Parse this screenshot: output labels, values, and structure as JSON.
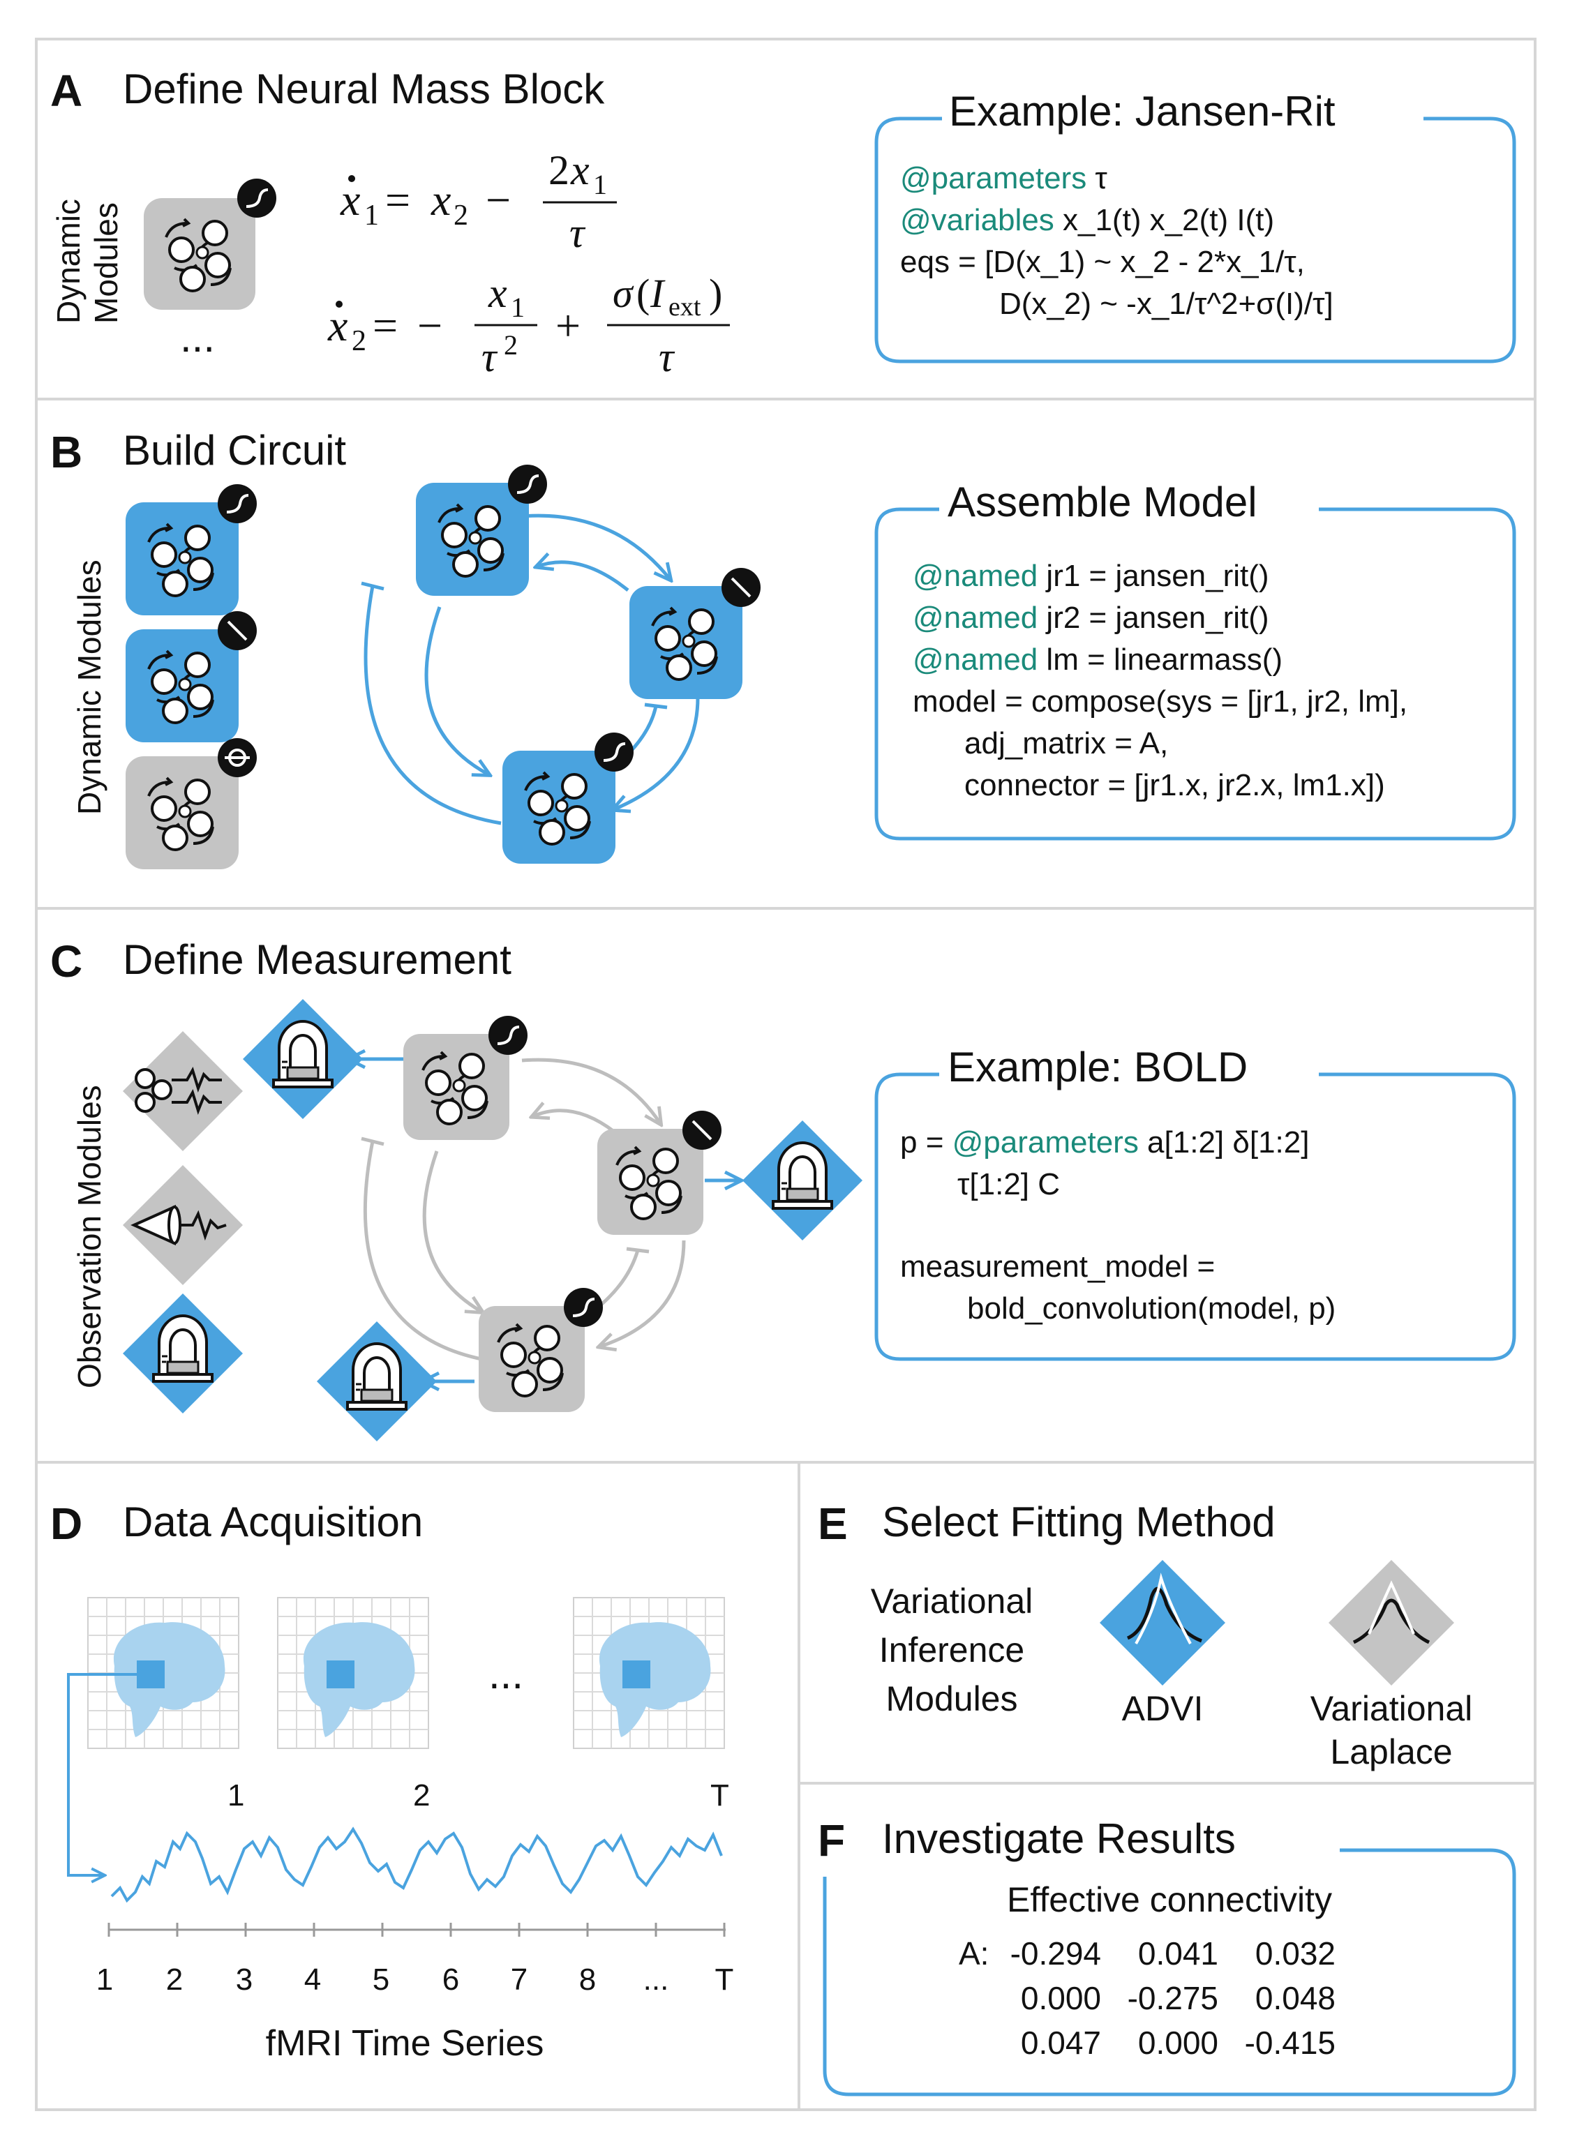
{
  "panels": {
    "A": {
      "letter": "A",
      "title": "Define Neural Mass Block",
      "side_label_line1": "Dynamic",
      "side_label_line2": "Modules",
      "ellipsis": "...",
      "box": {
        "title": "Example: Jansen-Rit",
        "lines": [
          {
            "teal": "@parameters",
            "text": " τ"
          },
          {
            "teal": "@variables",
            "text": " x_1(t) x_2(t) I(t)"
          },
          {
            "teal": "",
            "text": "eqs = [D(x_1) ~ x_2 - 2*x_1/τ,"
          },
          {
            "teal": "",
            "text": "D(x_2) ~ -x_1/τ^2+σ(I)/τ]"
          }
        ]
      }
    },
    "B": {
      "letter": "B",
      "title": "Build Circuit",
      "side_label": "Dynamic Modules",
      "box": {
        "title": "Assemble Model",
        "lines": [
          {
            "teal": "@named",
            "text": " jr1 = jansen_rit()"
          },
          {
            "teal": "@named",
            "text": " jr2 = jansen_rit()"
          },
          {
            "teal": "@named",
            "text": " lm = linearmass()"
          },
          {
            "teal": "",
            "text": "model = compose(sys = [jr1, jr2, lm],"
          },
          {
            "teal": "",
            "text": "adj_matrix = A,"
          },
          {
            "teal": "",
            "text": "connector = [jr1.x, jr2.x, lm1.x])"
          }
        ]
      }
    },
    "C": {
      "letter": "C",
      "title": "Define Measurement",
      "side_label": "Observation Modules",
      "box": {
        "title": "Example: BOLD",
        "lines": [
          {
            "teal": "@parameters",
            "pre": "p = ",
            "text": " a[1:2] δ[1:2]"
          },
          {
            "teal": "",
            "pre": "",
            "text": "τ[1:2] C"
          },
          {
            "teal": "",
            "pre": "",
            "text": "measurement_model ="
          },
          {
            "teal": "",
            "pre": "",
            "text": "bold_convolution(model, p)"
          }
        ]
      }
    },
    "D": {
      "letter": "D",
      "title": "Data Acquisition",
      "frame_labels": [
        "1",
        "2",
        "T"
      ],
      "ellipsis": "...",
      "axis_ticks": [
        "1",
        "2",
        "3",
        "4",
        "5",
        "6",
        "7",
        "8",
        "...",
        "T"
      ],
      "axis_label": "fMRI Time Series"
    },
    "E": {
      "letter": "E",
      "title": "Select Fitting Method",
      "modules_label": [
        "Variational",
        "Inference",
        "Modules"
      ],
      "method1": "ADVI",
      "method2": [
        "Variational",
        "Laplace"
      ]
    },
    "F": {
      "letter": "F",
      "title": "Investigate Results",
      "subtitle": "Effective connectivity",
      "matrix_label": "A:",
      "matrix": [
        [
          "-0.294",
          "0.041",
          "0.032"
        ],
        [
          "0.000",
          "-0.275",
          "0.048"
        ],
        [
          "0.047",
          "0.000",
          "-0.415"
        ]
      ]
    }
  },
  "colors": {
    "blue": "#4aa3df",
    "light_blue": "#a9d3ef",
    "gray": "#c4c4c4",
    "teal": "#1a8a7a",
    "border": "#d6d6d6"
  }
}
